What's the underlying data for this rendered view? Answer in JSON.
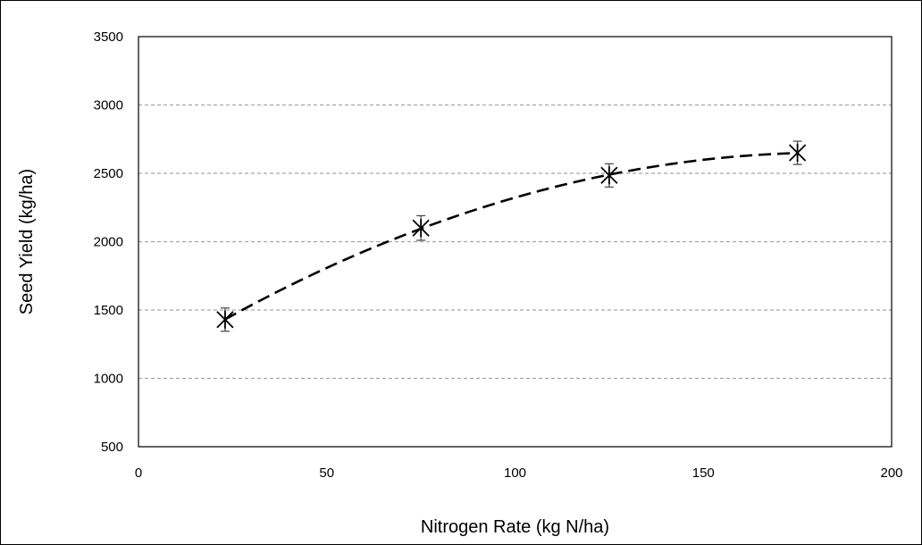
{
  "chart_data": {
    "type": "scatter",
    "title": "",
    "xlabel": "Nitrogen Rate (kg N/ha)",
    "ylabel": "Seed Yield (kg/ha)",
    "xlim": [
      0,
      200
    ],
    "ylim": [
      500,
      3500
    ],
    "x_ticks": [
      0,
      50,
      100,
      150,
      200
    ],
    "y_ticks": [
      500,
      1000,
      1500,
      2000,
      2500,
      3000,
      3500
    ],
    "grid": "horizontal-dashed",
    "legend": "none",
    "series": [
      {
        "marker": "asterisk",
        "x": [
          23,
          75,
          125,
          175
        ],
        "y": [
          1430,
          2100,
          2485,
          2650
        ],
        "error": [
          85,
          90,
          85,
          85
        ]
      }
    ],
    "trendline": {
      "type": "polynomial-2",
      "style": "dashed",
      "x_range": [
        23,
        175
      ],
      "points": {
        "x": [
          23,
          75,
          125,
          175
        ],
        "y": [
          1430,
          2100,
          2485,
          2650
        ]
      }
    }
  }
}
